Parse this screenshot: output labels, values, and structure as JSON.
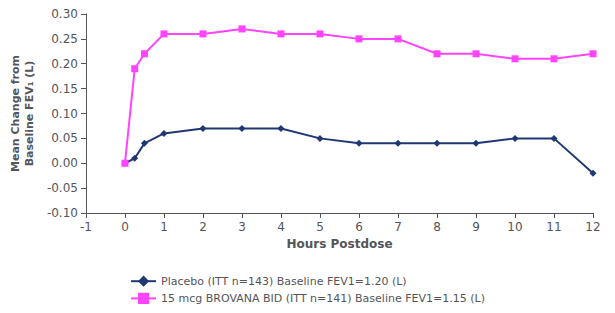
{
  "chart_data": {
    "type": "line",
    "x": [
      0,
      0.25,
      0.5,
      1,
      2,
      3,
      4,
      5,
      6,
      7,
      8,
      9,
      10,
      11,
      12
    ],
    "series": [
      {
        "name": "Placebo (ITT n=143) Baseline FEV1=1.20 (L)",
        "color": "#1F3874",
        "marker": "diamond",
        "values": [
          0.0,
          0.01,
          0.04,
          0.06,
          0.07,
          0.07,
          0.07,
          0.05,
          0.04,
          0.04,
          0.04,
          0.04,
          0.05,
          0.05,
          -0.02
        ]
      },
      {
        "name": "15 mcg BROVANA BID (ITT n=141) Baseline FEV1=1.15 (L)",
        "color": "#FF44FF",
        "marker": "square",
        "values": [
          0.0,
          0.19,
          0.22,
          0.26,
          0.26,
          0.27,
          0.26,
          0.26,
          0.25,
          0.25,
          0.22,
          0.22,
          0.21,
          0.21,
          0.22
        ]
      }
    ],
    "xlabel": "Hours Postdose",
    "ylabel": "Mean Change from\nBaseline FEV₁ (L)",
    "xlim": [
      -1,
      12
    ],
    "xticks": [
      -1,
      0,
      1,
      2,
      3,
      4,
      5,
      6,
      7,
      8,
      9,
      10,
      11,
      12
    ],
    "ylim": [
      -0.1,
      0.3
    ],
    "yticks": [
      {
        "value": -0.1,
        "label": "-0.10"
      },
      {
        "value": -0.05,
        "label": "-0.05"
      },
      {
        "value": 0.0,
        "label": "0.00"
      },
      {
        "value": 0.05,
        "label": "0.05"
      },
      {
        "value": 0.1,
        "label": "0.10"
      },
      {
        "value": 0.15,
        "label": "0.15"
      },
      {
        "value": 0.2,
        "label": "0.20"
      },
      {
        "value": 0.25,
        "label": "0.25"
      },
      {
        "value": 0.3,
        "label": "0.30"
      }
    ],
    "grid": false,
    "legend": "bottom"
  }
}
